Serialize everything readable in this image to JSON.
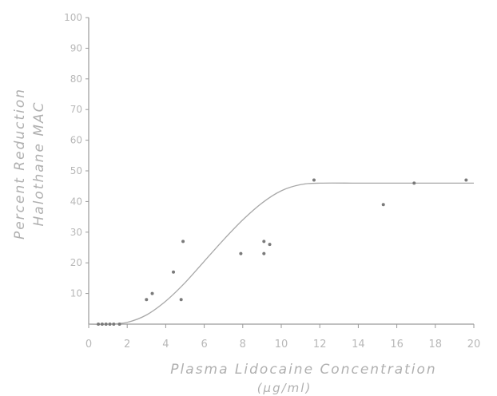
{
  "chart_data": {
    "type": "scatter",
    "xlabel": "Plasma Lidocaine Concentration",
    "xunit": "(µg/ml)",
    "ylabel_line1": "Percent Reduction",
    "ylabel_line2": "Halothane MAC",
    "xlim": [
      0,
      20
    ],
    "ylim": [
      0,
      100
    ],
    "x_ticks": [
      "0",
      "2",
      "4",
      "6",
      "8",
      "10",
      "12",
      "14",
      "16",
      "18",
      "20"
    ],
    "y_ticks": [
      "10",
      "20",
      "30",
      "40",
      "50",
      "60",
      "70",
      "80",
      "90",
      "100"
    ],
    "grid": false,
    "series": [
      {
        "values": [
          {
            "x": 0.5,
            "y": 0
          },
          {
            "x": 0.7,
            "y": 0
          },
          {
            "x": 0.9,
            "y": 0
          },
          {
            "x": 1.1,
            "y": 0
          },
          {
            "x": 1.3,
            "y": 0
          },
          {
            "x": 1.6,
            "y": 0
          },
          {
            "x": 3.0,
            "y": 8
          },
          {
            "x": 3.3,
            "y": 10
          },
          {
            "x": 4.4,
            "y": 17
          },
          {
            "x": 4.8,
            "y": 8
          },
          {
            "x": 4.9,
            "y": 27
          },
          {
            "x": 7.9,
            "y": 23
          },
          {
            "x": 9.1,
            "y": 27
          },
          {
            "x": 9.1,
            "y": 23
          },
          {
            "x": 9.4,
            "y": 26
          },
          {
            "x": 11.7,
            "y": 47
          },
          {
            "x": 15.3,
            "y": 39
          },
          {
            "x": 16.9,
            "y": 46
          },
          {
            "x": 19.6,
            "y": 47
          }
        ]
      }
    ],
    "fit_curve": [
      [
        0,
        0
      ],
      [
        1,
        0
      ],
      [
        2,
        0.6
      ],
      [
        3,
        3
      ],
      [
        4,
        7.5
      ],
      [
        5,
        13.5
      ],
      [
        6,
        20.5
      ],
      [
        7,
        27.5
      ],
      [
        8,
        34
      ],
      [
        9,
        39.5
      ],
      [
        10,
        43.5
      ],
      [
        11,
        45.5
      ],
      [
        12,
        46
      ],
      [
        14,
        46
      ],
      [
        16,
        46
      ],
      [
        18,
        46
      ],
      [
        20,
        46
      ]
    ]
  }
}
